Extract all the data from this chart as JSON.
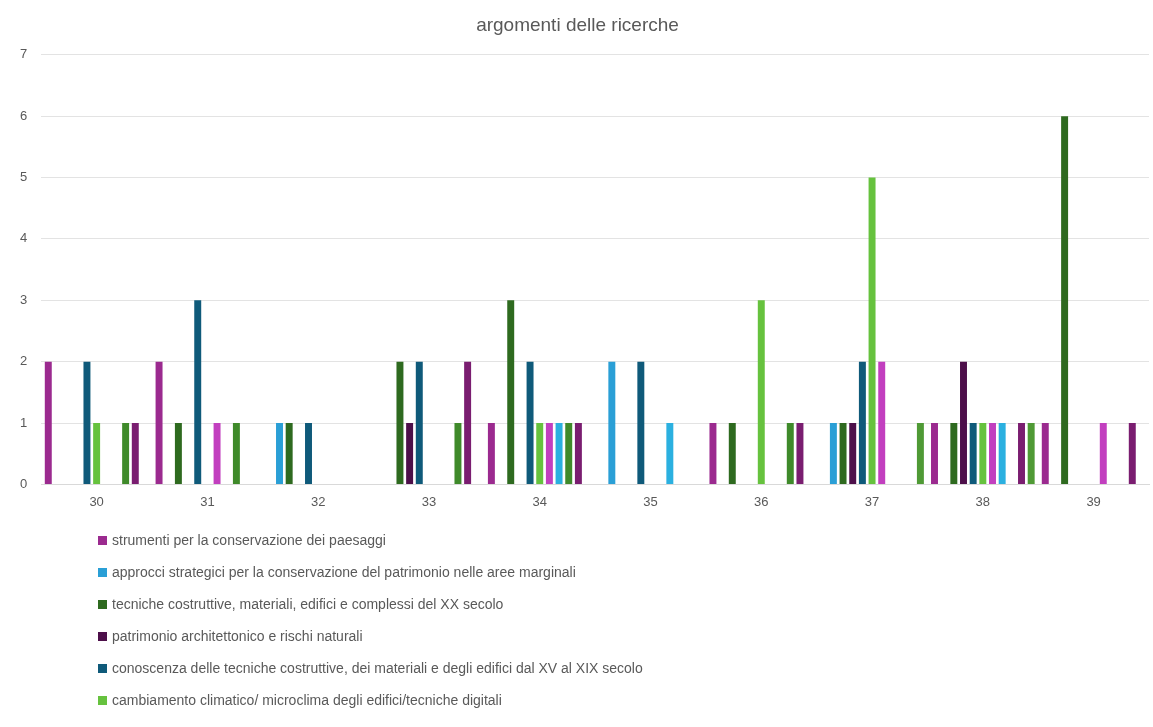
{
  "chart_data": {
    "type": "bar",
    "title": "argomenti delle ricerche",
    "categories": [
      "30",
      "31",
      "32",
      "33",
      "34",
      "35",
      "36",
      "37",
      "38",
      "39"
    ],
    "series": [
      {
        "name": "strumenti per la conservazione dei paesaggi",
        "color": "#9b2a8f",
        "values": [
          2,
          2,
          0,
          0,
          1,
          0,
          1,
          0,
          1,
          1
        ]
      },
      {
        "name": "approcci strategici per la conservazione del patrimonio nelle aree marginali",
        "color": "#2a9fd6",
        "values": [
          0,
          0,
          1,
          0,
          0,
          2,
          0,
          1,
          0,
          0
        ]
      },
      {
        "name": "tecniche costruttive, materiali, edifici e complessi del XX secolo",
        "color": "#2e6a1f",
        "values": [
          0,
          1,
          1,
          2,
          3,
          0,
          1,
          1,
          1,
          6
        ]
      },
      {
        "name": "patrimonio architettonico e rischi naturali",
        "color": "#4d0f4a",
        "values": [
          0,
          0,
          0,
          1,
          0,
          0,
          0,
          1,
          2,
          0
        ]
      },
      {
        "name": "conoscenza delle tecniche costruttive, dei materiali e degli edifici dal XV al XIX secolo",
        "color": "#0f5a7a",
        "values": [
          2,
          3,
          1,
          2,
          2,
          2,
          0,
          2,
          1,
          0
        ]
      },
      {
        "name": "cambiamento climatico/ microclima degli edifici/tecniche digitali",
        "color": "#66c23e",
        "values": [
          1,
          0,
          0,
          0,
          1,
          0,
          3,
          5,
          1,
          0
        ]
      },
      {
        "color": "#c23fbf",
        "values": [
          0,
          1,
          0,
          0,
          1,
          0,
          0,
          2,
          1,
          1
        ]
      },
      {
        "color": "#2bb0e0",
        "values": [
          0,
          0,
          0,
          0,
          1,
          1,
          0,
          0,
          1,
          0
        ]
      },
      {
        "color": "#3f8a2a",
        "values": [
          1,
          1,
          0,
          1,
          1,
          0,
          1,
          0,
          0,
          0
        ]
      },
      {
        "color": "#7a1d70",
        "values": [
          1,
          0,
          0,
          2,
          1,
          0,
          1,
          0,
          1,
          1
        ]
      },
      {
        "color": "#4f9a35",
        "values": [
          0,
          0,
          0,
          0,
          0,
          0,
          0,
          1,
          1,
          0
        ]
      }
    ],
    "ylim": [
      0,
      7
    ],
    "yticks": [
      0,
      1,
      2,
      3,
      4,
      5,
      6,
      7
    ],
    "grid": "y",
    "legend": "bottom"
  }
}
